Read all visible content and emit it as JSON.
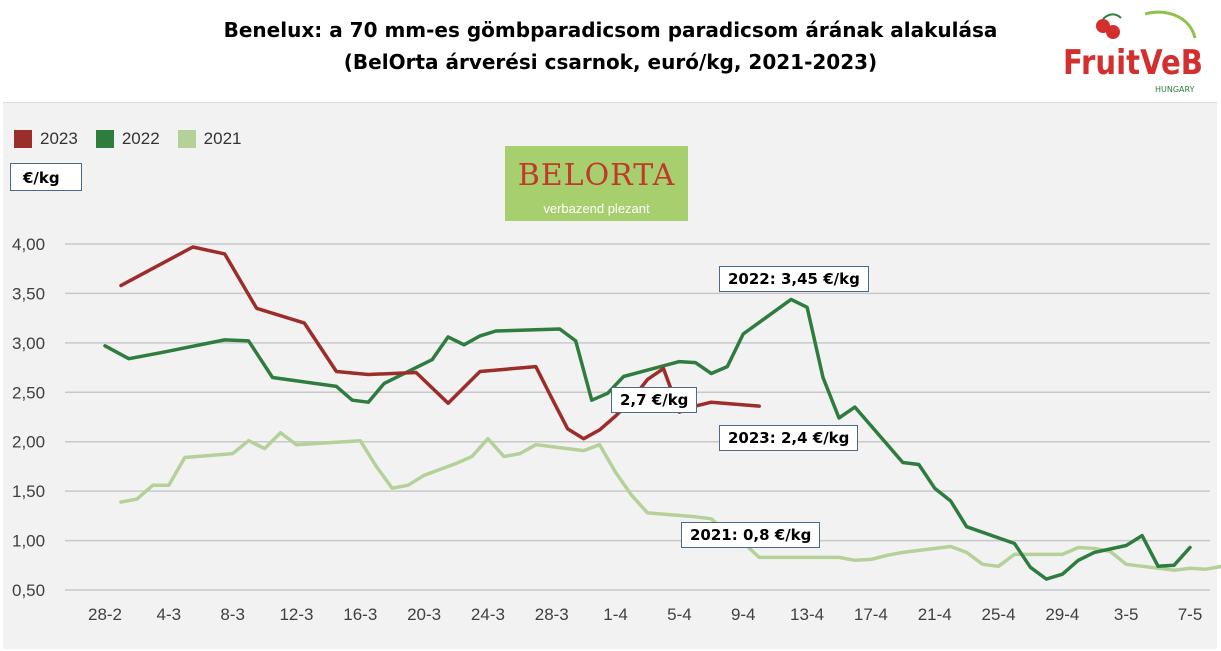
{
  "title": {
    "line1": "Benelux: a 70 mm-es gömbparadicsom paradicsom árának alakulása",
    "line2": "(BelOrta árverési csarnok, euró/kg, 2021-2023)"
  },
  "logos": {
    "fruitveb": "FruitVeB",
    "fruitveb_sub": "HUNGARY",
    "belorta": "BELORTA",
    "belorta_tag": "verbazend plezant"
  },
  "unit_label": "€/kg",
  "annotations": [
    {
      "id": "a2022",
      "text": "2022: 3,45 €/kg"
    },
    {
      "id": "a27",
      "text": "2,7 €/kg"
    },
    {
      "id": "a2023",
      "text": "2023: 2,4 €/kg"
    },
    {
      "id": "a2021",
      "text": "2021: 0,8 €/kg"
    }
  ],
  "colors": {
    "y2023": "#9b2d2a",
    "y2022": "#2e7d3e",
    "y2021": "#b5d19a",
    "grid": "#c8c8c8",
    "axis_text": "#404040"
  },
  "chart_data": {
    "type": "line",
    "title": "Benelux: a 70 mm-es gömbparadicsom paradicsom árának alakulása (BelOrta árverési csarnok, euró/kg, 2021-2023)",
    "ylabel": "€/kg",
    "ylim": [
      0.5,
      4.0
    ],
    "yticks": [
      "0,50",
      "1,00",
      "1,50",
      "2,00",
      "2,50",
      "3,00",
      "3,50",
      "4,00"
    ],
    "grid": true,
    "legend_position": "top-left",
    "xlim": [
      0,
      68
    ],
    "xticks": [
      {
        "x": 0,
        "label": "28-2"
      },
      {
        "x": 4,
        "label": "4-3"
      },
      {
        "x": 8,
        "label": "8-3"
      },
      {
        "x": 12,
        "label": "12-3"
      },
      {
        "x": 16,
        "label": "16-3"
      },
      {
        "x": 20,
        "label": "20-3"
      },
      {
        "x": 24,
        "label": "24-3"
      },
      {
        "x": 28,
        "label": "28-3"
      },
      {
        "x": 32,
        "label": "1-4"
      },
      {
        "x": 36,
        "label": "5-4"
      },
      {
        "x": 40,
        "label": "9-4"
      },
      {
        "x": 44,
        "label": "13-4"
      },
      {
        "x": 48,
        "label": "17-4"
      },
      {
        "x": 52,
        "label": "21-4"
      },
      {
        "x": 56,
        "label": "25-4"
      },
      {
        "x": 60,
        "label": "29-4"
      },
      {
        "x": 64,
        "label": "3-5"
      },
      {
        "x": 68,
        "label": "7-5"
      }
    ],
    "series": [
      {
        "name": "2023",
        "color": "#9b2d2a",
        "points": [
          [
            1,
            3.58
          ],
          [
            5.5,
            3.97
          ],
          [
            7.5,
            3.9
          ],
          [
            9.5,
            3.35
          ],
          [
            12.5,
            3.2
          ],
          [
            14.5,
            2.71
          ],
          [
            16.5,
            2.68
          ],
          [
            19.5,
            2.7
          ],
          [
            21.5,
            2.39
          ],
          [
            23.5,
            2.71
          ],
          [
            27,
            2.76
          ],
          [
            28,
            2.44
          ],
          [
            29,
            2.13
          ],
          [
            30,
            2.03
          ],
          [
            31,
            2.12
          ],
          [
            32,
            2.26
          ],
          [
            33,
            2.42
          ],
          [
            34,
            2.63
          ],
          [
            35,
            2.74
          ],
          [
            36,
            2.3
          ],
          [
            37,
            2.36
          ],
          [
            38,
            2.4
          ],
          [
            41,
            2.36
          ]
        ]
      },
      {
        "name": "2022",
        "color": "#2e7d3e",
        "points": [
          [
            0,
            2.97
          ],
          [
            1.5,
            2.84
          ],
          [
            3.5,
            2.9
          ],
          [
            7.5,
            3.03
          ],
          [
            9,
            3.02
          ],
          [
            10.5,
            2.65
          ],
          [
            14.5,
            2.56
          ],
          [
            15.5,
            2.42
          ],
          [
            16.5,
            2.4
          ],
          [
            17.5,
            2.59
          ],
          [
            19.5,
            2.75
          ],
          [
            20.5,
            2.83
          ],
          [
            21.5,
            3.06
          ],
          [
            22.5,
            2.98
          ],
          [
            23.5,
            3.07
          ],
          [
            24.5,
            3.12
          ],
          [
            28.5,
            3.14
          ],
          [
            29.5,
            3.02
          ],
          [
            30.5,
            2.42
          ],
          [
            31.5,
            2.49
          ],
          [
            32.5,
            2.66
          ],
          [
            36,
            2.81
          ],
          [
            37,
            2.8
          ],
          [
            38,
            2.69
          ],
          [
            39,
            2.76
          ],
          [
            40,
            3.09
          ],
          [
            43,
            3.44
          ],
          [
            44,
            3.36
          ],
          [
            45,
            2.65
          ],
          [
            46,
            2.24
          ],
          [
            47,
            2.35
          ],
          [
            50,
            1.79
          ],
          [
            51,
            1.77
          ],
          [
            52,
            1.53
          ],
          [
            53,
            1.4
          ],
          [
            54,
            1.14
          ],
          [
            57,
            0.97
          ],
          [
            58,
            0.73
          ],
          [
            59,
            0.61
          ],
          [
            60,
            0.66
          ],
          [
            61,
            0.8
          ],
          [
            62,
            0.88
          ],
          [
            64,
            0.95
          ],
          [
            65,
            1.05
          ],
          [
            66,
            0.74
          ],
          [
            67,
            0.75
          ],
          [
            68,
            0.93
          ]
        ]
      },
      {
        "name": "2021",
        "color": "#b5d19a",
        "points": [
          [
            1,
            1.39
          ],
          [
            2,
            1.42
          ],
          [
            3,
            1.56
          ],
          [
            4,
            1.56
          ],
          [
            5,
            1.84
          ],
          [
            8,
            1.88
          ],
          [
            9,
            2.01
          ],
          [
            10,
            1.93
          ],
          [
            11,
            2.09
          ],
          [
            12,
            1.97
          ],
          [
            15,
            2.0
          ],
          [
            16,
            2.01
          ],
          [
            17,
            1.75
          ],
          [
            18,
            1.53
          ],
          [
            19,
            1.56
          ],
          [
            20,
            1.66
          ],
          [
            22,
            1.78
          ],
          [
            23,
            1.85
          ],
          [
            24,
            2.03
          ],
          [
            25,
            1.85
          ],
          [
            26,
            1.88
          ],
          [
            27,
            1.97
          ],
          [
            30,
            1.91
          ],
          [
            31,
            1.97
          ],
          [
            32,
            1.69
          ],
          [
            33,
            1.46
          ],
          [
            34,
            1.28
          ],
          [
            37,
            1.24
          ],
          [
            38,
            1.22
          ],
          [
            39,
            1.07
          ],
          [
            40,
            0.98
          ],
          [
            41,
            0.83
          ],
          [
            44,
            0.83
          ],
          [
            46,
            0.83
          ],
          [
            47,
            0.8
          ],
          [
            48,
            0.81
          ],
          [
            49,
            0.85
          ],
          [
            50,
            0.88
          ],
          [
            53,
            0.94
          ],
          [
            54,
            0.88
          ],
          [
            55,
            0.76
          ],
          [
            56,
            0.74
          ],
          [
            57,
            0.86
          ],
          [
            60,
            0.86
          ],
          [
            61,
            0.93
          ],
          [
            62,
            0.92
          ],
          [
            63,
            0.89
          ],
          [
            64,
            0.76
          ],
          [
            65,
            0.74
          ],
          [
            67,
            0.7
          ],
          [
            68,
            0.72
          ],
          [
            69,
            0.71
          ],
          [
            70,
            0.74
          ],
          [
            71,
            0.72
          ]
        ]
      }
    ],
    "annotations": [
      "2022: 3,45 €/kg",
      "2,7 €/kg",
      "2023: 2,4 €/kg",
      "2021: 0,8 €/kg"
    ]
  }
}
